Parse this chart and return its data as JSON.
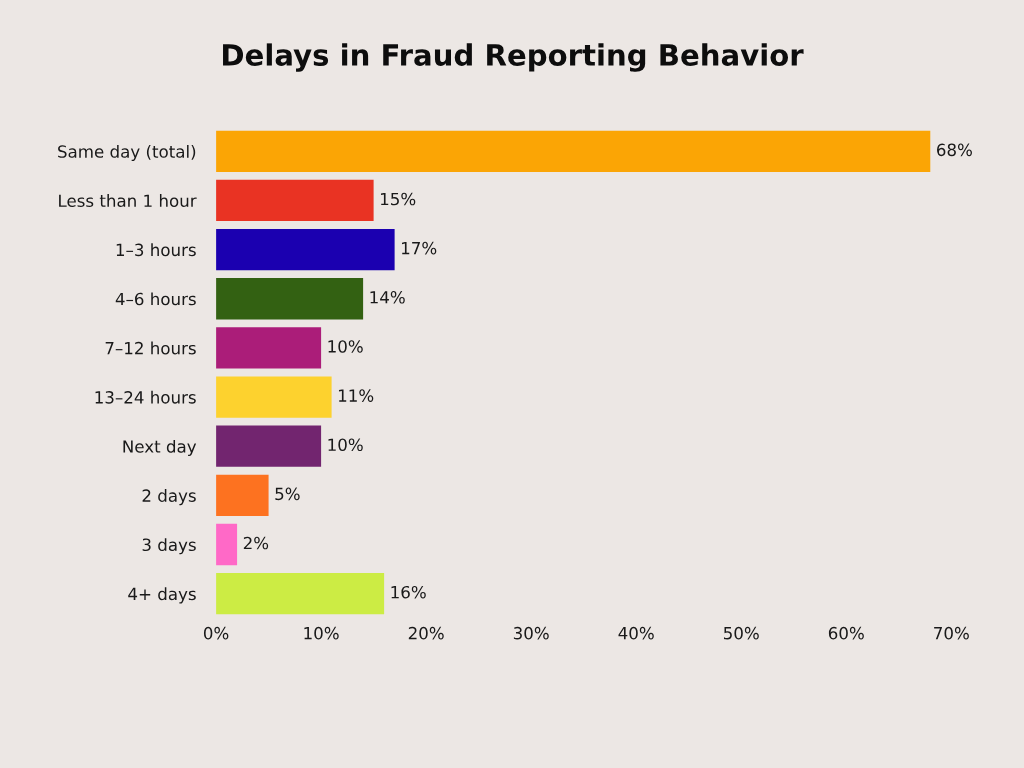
{
  "chart_data": {
    "type": "bar",
    "orientation": "horizontal",
    "title": "Delays in Fraud Reporting Behavior",
    "categories": [
      "Same day (total)",
      "Less than 1 hour",
      "1–3 hours",
      "4–6 hours",
      "7–12 hours",
      "13–24 hours",
      "Next day",
      "2 days",
      "3 days",
      "4+ days"
    ],
    "values": [
      68,
      15,
      17,
      14,
      10,
      11,
      10,
      5,
      2,
      16
    ],
    "colors": [
      "#fba505",
      "#e93323",
      "#1b00b0",
      "#336112",
      "#ab1d79",
      "#fdd22e",
      "#72256f",
      "#fd7220",
      "#ff69c7",
      "#ccec44"
    ],
    "value_labels": [
      "68%",
      "15%",
      "17%",
      "14%",
      "10%",
      "11%",
      "10%",
      "5%",
      "2%",
      "16%"
    ],
    "xlim": [
      0,
      70
    ],
    "xticks": [
      {
        "value": 0,
        "label": "0%"
      },
      {
        "value": 10,
        "label": "10%"
      },
      {
        "value": 20,
        "label": "20%"
      },
      {
        "value": 30,
        "label": "30%"
      },
      {
        "value": 40,
        "label": "40%"
      },
      {
        "value": 50,
        "label": "50%"
      },
      {
        "value": 60,
        "label": "60%"
      },
      {
        "value": 70,
        "label": "70%"
      }
    ],
    "grid": false
  }
}
